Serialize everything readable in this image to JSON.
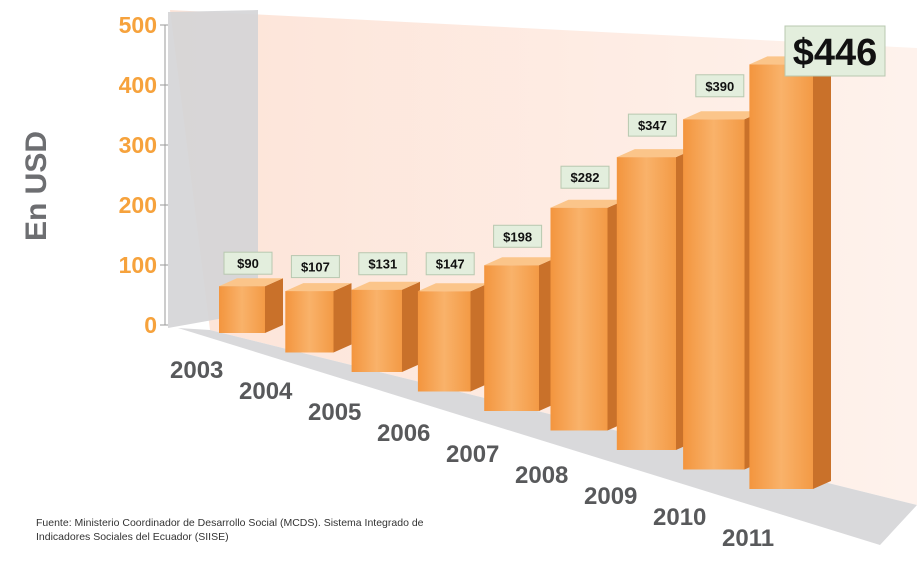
{
  "chart_data": {
    "type": "bar",
    "title": "",
    "xlabel": "",
    "ylabel": "En USD",
    "ylim": [
      0,
      500
    ],
    "yticks": [
      0,
      100,
      200,
      300,
      400,
      500
    ],
    "categories": [
      "2003",
      "2004",
      "2005",
      "2006",
      "2007",
      "2008",
      "2009",
      "2010",
      "2011"
    ],
    "values": [
      90,
      107,
      131,
      147,
      198,
      282,
      347,
      390,
      446
    ],
    "data_labels": [
      "$90",
      "$107",
      "$131",
      "$147",
      "$198",
      "$282",
      "$347",
      "$390",
      "$446"
    ],
    "legend": "none",
    "grid": false
  },
  "source": "Fuente: Ministerio Coordinador de Desarrollo Social (MCDS). Sistema Integrado de Indicadores Sociales del Ecuador (SIISE)",
  "colors": {
    "bar_front": "#f7a552",
    "bar_side": "#c9712a",
    "bar_top": "#fbc58a",
    "tick_labels": "#f6a23c",
    "back_wall": "#fde6dc",
    "side_wall": "#d4d4d6",
    "floor": "#d9d9db",
    "label_box": "#e3eedd"
  }
}
